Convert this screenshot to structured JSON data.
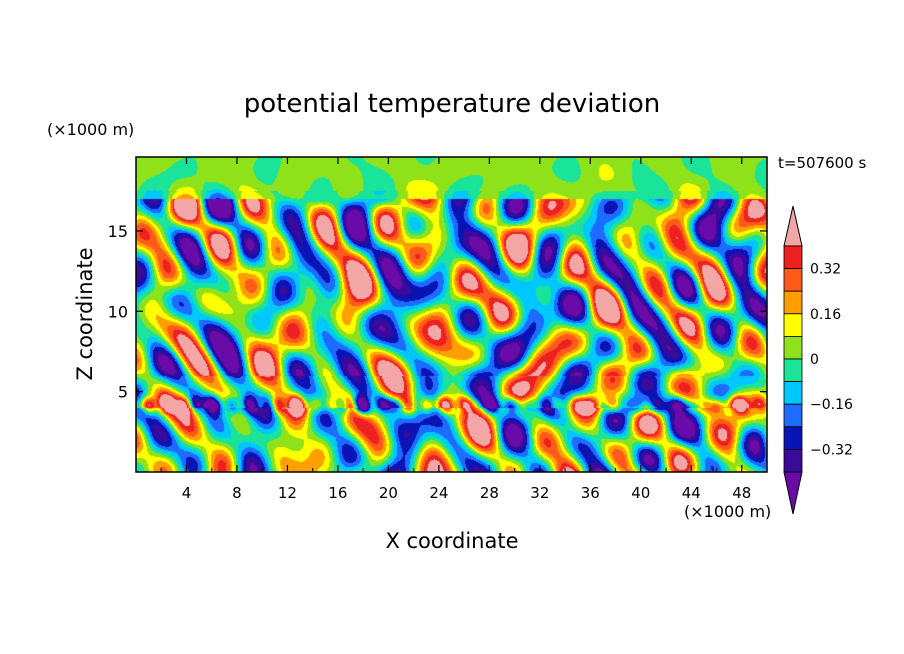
{
  "chart_data": {
    "type": "heatmap",
    "title": "potential temperature deviation",
    "xlabel": "X coordinate",
    "ylabel": "Z coordinate",
    "x_unit": "(×1000 m)",
    "y_unit": "(×1000 m)",
    "time_label": "t=507600 s",
    "xlim": [
      0,
      50
    ],
    "ylim": [
      0,
      19.6
    ],
    "x_ticks": [
      4,
      8,
      12,
      16,
      20,
      24,
      28,
      32,
      36,
      40,
      44,
      48
    ],
    "x_tick_labels": [
      "4",
      "8",
      "12",
      "16",
      "20",
      "24",
      "28",
      "32",
      "36",
      "40",
      "44",
      "48"
    ],
    "y_ticks": [
      5,
      10,
      15
    ],
    "y_tick_labels": [
      "5",
      "10",
      "15"
    ],
    "colorbar": {
      "levels": [
        -0.4,
        -0.32,
        -0.24,
        -0.16,
        -0.08,
        0,
        0.08,
        0.16,
        0.24,
        0.32,
        0.4
      ],
      "tick_values": [
        0.32,
        0.16,
        0,
        -0.16,
        -0.32
      ],
      "tick_labels": [
        "0.32",
        "0.16",
        "0",
        "−0.16",
        "−0.32"
      ],
      "colors": [
        "#6a0aa8",
        "#3a0a9a",
        "#0a14b4",
        "#1e6bff",
        "#00c8ff",
        "#19e49a",
        "#8fe21a",
        "#ffff00",
        "#ff9f00",
        "#ff5a1a",
        "#ee2020",
        "#f2a6a6"
      ],
      "extend": "both"
    },
    "field": {
      "description": "Turbulent potential temperature deviation field; strong warm/cold anomalies in a layer near z≈4-5 km and ridged wave patterns aloft up to z≈17 km; near-zero (green) above z≈17 km.",
      "boundary_layer_z": 4.5,
      "wave_layer_top_z": 17,
      "value_range": [
        -0.45,
        0.45
      ]
    }
  }
}
